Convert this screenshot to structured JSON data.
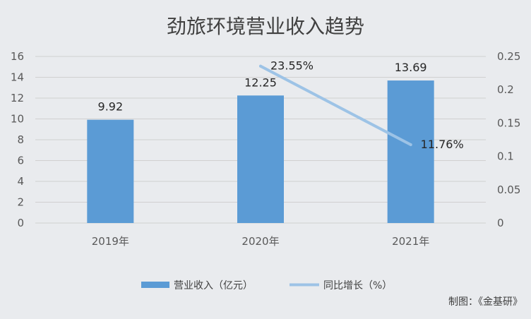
{
  "chart_data": {
    "type": "bar",
    "title": "劲旅环境营业收入趋势",
    "categories": [
      "2019年",
      "2020年",
      "2021年"
    ],
    "series": [
      {
        "name": "营业收入（亿元）",
        "type": "bar",
        "axis": "left",
        "values": [
          9.92,
          12.25,
          13.69
        ],
        "labels": [
          "9.92",
          "12.25",
          "13.69"
        ]
      },
      {
        "name": "同比增长（%）",
        "type": "line",
        "axis": "right",
        "values": [
          null,
          0.2355,
          0.1176
        ],
        "labels": [
          null,
          "23.55%",
          "11.76%"
        ]
      }
    ],
    "y_left": {
      "min": 0,
      "max": 16,
      "ticks": [
        0,
        2,
        4,
        6,
        8,
        10,
        12,
        14,
        16
      ],
      "tick_labels": [
        "0",
        "2",
        "4",
        "6",
        "8",
        "10",
        "12",
        "14",
        "16"
      ]
    },
    "y_right": {
      "min": 0,
      "max": 0.25,
      "ticks": [
        0,
        0.05,
        0.1,
        0.15,
        0.2,
        0.25
      ],
      "tick_labels": [
        "0",
        "0.05",
        "0.1",
        "0.15",
        "0.2",
        "0.25"
      ]
    },
    "grid": true,
    "legend": "bottom"
  },
  "colors": {
    "bar": "#5b9bd5",
    "line": "#9dc3e6",
    "grid": "#d0d0d0",
    "background": "#e9ebee"
  },
  "source": "制图：《金基研》"
}
